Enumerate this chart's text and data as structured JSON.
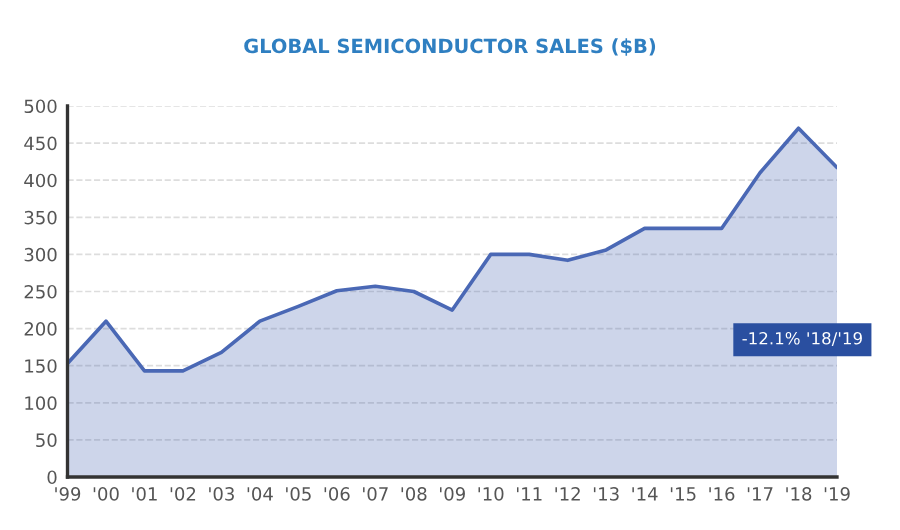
{
  "chart_data": {
    "type": "area",
    "title": "GLOBAL SEMICONDUCTOR SALES ($B)",
    "categories": [
      "'99",
      "'00",
      "'01",
      "'02",
      "'03",
      "'04",
      "'05",
      "'06",
      "'07",
      "'08",
      "'09",
      "'10",
      "'11",
      "'12",
      "'13",
      "'14",
      "'15",
      "'16",
      "'17",
      "'18",
      "'19"
    ],
    "series": [
      {
        "color": "#4a68b5",
        "values": [
          153,
          210,
          143,
          143,
          168,
          210,
          230,
          251,
          257,
          250,
          225,
          300,
          300,
          292,
          306,
          335,
          335,
          335,
          410,
          470,
          417
        ]
      }
    ],
    "ylim": [
      0,
      500
    ],
    "yticks": [
      0,
      50,
      100,
      150,
      200,
      250,
      300,
      350,
      400,
      450,
      500
    ],
    "grid": "y",
    "annotations": [
      "-12.1% '18/'19"
    ]
  }
}
